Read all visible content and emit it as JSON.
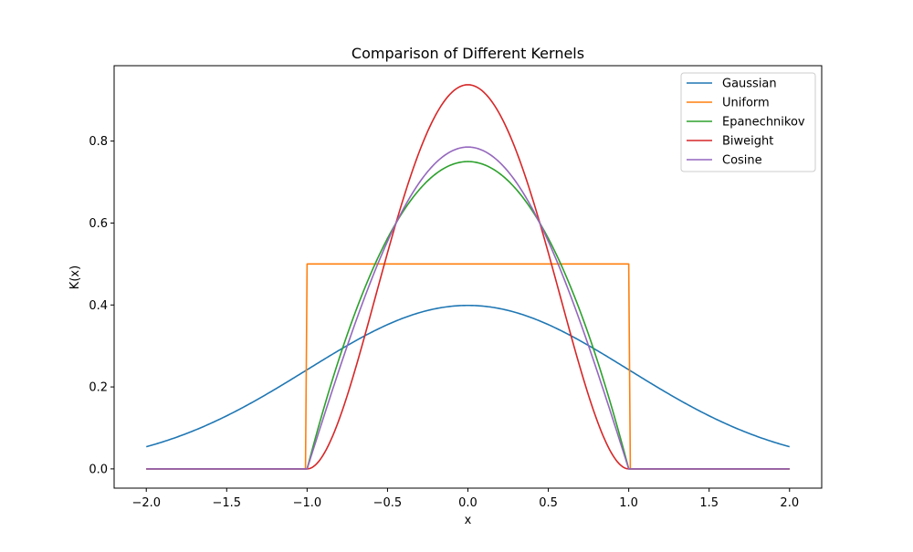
{
  "chart_data": {
    "type": "line",
    "title": "Comparison of Different Kernels",
    "xlabel": "x",
    "ylabel": "K(x)",
    "xlim": [
      -2.2,
      2.2
    ],
    "ylim": [
      -0.047,
      0.984
    ],
    "xticks": [
      -2.0,
      -1.5,
      -1.0,
      -0.5,
      0.0,
      0.5,
      1.0,
      1.5,
      2.0
    ],
    "xtick_labels": [
      "−2.0",
      "−1.5",
      "−1.0",
      "−0.5",
      "0.0",
      "0.5",
      "1.0",
      "1.5",
      "2.0"
    ],
    "yticks": [
      0.0,
      0.2,
      0.4,
      0.6,
      0.8
    ],
    "ytick_labels": [
      "0.0",
      "0.2",
      "0.4",
      "0.6",
      "0.8"
    ],
    "grid": false,
    "legend_position": "top-right",
    "x_range": [
      -2.0,
      2.0
    ],
    "series": [
      {
        "name": "Gaussian",
        "color": "#1f77b4",
        "x": [
          -2.0,
          -1.75,
          -1.5,
          -1.25,
          -1.0,
          -0.75,
          -0.5,
          -0.25,
          0.0,
          0.25,
          0.5,
          0.75,
          1.0,
          1.25,
          1.5,
          1.75,
          2.0
        ],
        "values": [
          0.054,
          0.086,
          0.13,
          0.183,
          0.242,
          0.301,
          0.352,
          0.387,
          0.399,
          0.387,
          0.352,
          0.301,
          0.242,
          0.183,
          0.13,
          0.086,
          0.054
        ]
      },
      {
        "name": "Uniform",
        "color": "#ff7f0e",
        "x": [
          -2.0,
          -1.0,
          -1.0,
          1.0,
          1.0,
          2.0
        ],
        "values": [
          0.0,
          0.0,
          0.5,
          0.5,
          0.0,
          0.0
        ]
      },
      {
        "name": "Epanechnikov",
        "color": "#2ca02c",
        "x": [
          -2.0,
          -1.0,
          -0.75,
          -0.5,
          -0.25,
          0.0,
          0.25,
          0.5,
          0.75,
          1.0,
          2.0
        ],
        "values": [
          0.0,
          0.0,
          0.328,
          0.563,
          0.703,
          0.75,
          0.703,
          0.563,
          0.328,
          0.0,
          0.0
        ]
      },
      {
        "name": "Biweight",
        "color": "#d62728",
        "x": [
          -2.0,
          -1.0,
          -0.75,
          -0.5,
          -0.25,
          0.0,
          0.25,
          0.5,
          0.75,
          1.0,
          2.0
        ],
        "values": [
          0.0,
          0.0,
          0.179,
          0.527,
          0.824,
          0.938,
          0.824,
          0.527,
          0.179,
          0.0,
          0.0
        ]
      },
      {
        "name": "Cosine",
        "color": "#9467bd",
        "x": [
          -2.0,
          -1.0,
          -0.75,
          -0.5,
          -0.25,
          0.0,
          0.25,
          0.5,
          0.75,
          1.0,
          2.0
        ],
        "values": [
          0.0,
          0.0,
          0.301,
          0.555,
          0.726,
          0.785,
          0.726,
          0.555,
          0.301,
          0.0,
          0.0
        ]
      }
    ]
  }
}
